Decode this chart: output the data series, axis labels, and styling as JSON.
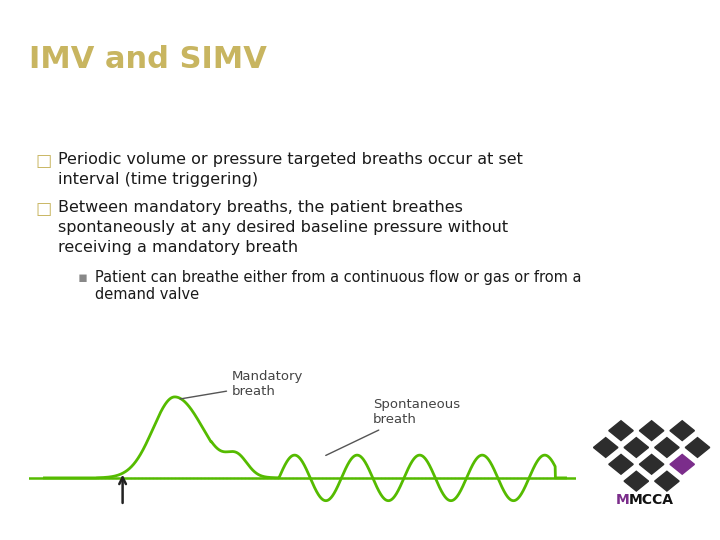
{
  "title": "IMV and SIMV",
  "title_color": "#C8B560",
  "title_bg_color": "#0A2D5E",
  "title_fontsize": 22,
  "body_bg_color": "#FFFFFF",
  "bullet1_line1": "Periodic volume or pressure targeted breaths occur at set",
  "bullet1_line2": "interval (time triggering)",
  "bullet2_line1": "Between mandatory breaths, the patient breathes",
  "bullet2_line2": "spontaneously at any desired baseline pressure without",
  "bullet2_line3": "receiving a mandatory breath",
  "sub_line1": "Patient can breathe either from a continuous flow or gas or from a",
  "sub_line2": "demand valve",
  "bullet_color": "#C8B560",
  "text_color": "#1A1A1A",
  "text_fontsize": 11.5,
  "sub_text_fontsize": 10.5,
  "wave_color": "#55BB00",
  "annotation_color": "#555555",
  "mandatory_label": "Mandatory\nbreath",
  "spontaneous_label": "Spontaneous\nbreath",
  "arrow_color": "#222222",
  "dotted_color": "#AAAAAA",
  "logo_dark_color": "#2D2D2D",
  "logo_purple_color": "#7B2D8B",
  "logo_text": "MCCA"
}
